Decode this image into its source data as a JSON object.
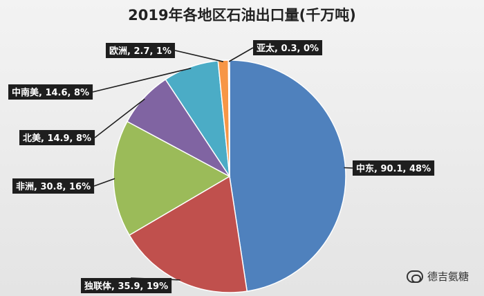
{
  "chart_data": {
    "type": "pie",
    "title": "2019年各地区石油出口量(千万吨)",
    "slices": [
      {
        "name": "中东",
        "value": 90.1,
        "percent": "48%",
        "label": "中东, 90.1, 48%",
        "color": "#4f81bd"
      },
      {
        "name": "独联体",
        "value": 35.9,
        "percent": "19%",
        "label": "独联体, 35.9, 19%",
        "color": "#c0504d"
      },
      {
        "name": "非洲",
        "value": 30.8,
        "percent": "16%",
        "label": "非洲, 30.8, 16%",
        "color": "#9bbb59"
      },
      {
        "name": "北美",
        "value": 14.9,
        "percent": "8%",
        "label": "北美, 14.9, 8%",
        "color": "#8064a2"
      },
      {
        "name": "中南美",
        "value": 14.6,
        "percent": "8%",
        "label": "中南美, 14.6, 8%",
        "color": "#4bacc6"
      },
      {
        "name": "欧洲",
        "value": 2.7,
        "percent": "1%",
        "label": "欧洲, 2.7, 1%",
        "color": "#f79646"
      },
      {
        "name": "亚太",
        "value": 0.3,
        "percent": "0%",
        "label": "亚太, 0.3, 0%",
        "color": "#2c4d75"
      }
    ],
    "start_angle_deg": 0,
    "direction": "clockwise"
  },
  "watermark": {
    "text": "德吉氨糖",
    "icon": "wechat-icon"
  }
}
